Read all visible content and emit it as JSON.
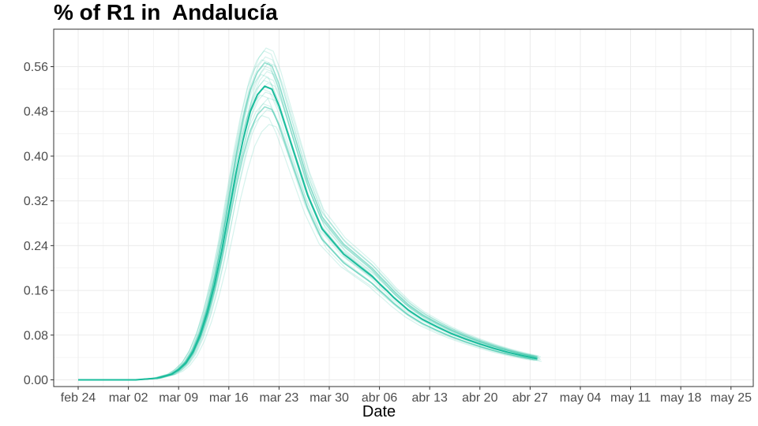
{
  "chart_data": {
    "type": "line",
    "title": "% of R1 in  Andalucía",
    "xlabel": "Date",
    "ylabel": "",
    "x_tick_labels": [
      "feb 24",
      "mar 02",
      "mar 09",
      "mar 16",
      "mar 23",
      "mar 30",
      "abr 06",
      "abr 13",
      "abr 20",
      "abr 27",
      "may 04",
      "may 11",
      "may 18",
      "may 25"
    ],
    "y_tick_labels": [
      "0.00",
      "0.08",
      "0.16",
      "0.24",
      "0.32",
      "0.40",
      "0.48",
      "0.56"
    ],
    "ylim": [
      -0.012,
      0.627
    ],
    "xlim_days": [
      -4,
      66
    ],
    "x_start_date": "feb 24",
    "grid": true,
    "legend": "none",
    "color": "#1abc9c",
    "main_series": {
      "name": "",
      "days": [
        0,
        8,
        11,
        13,
        14,
        15,
        16,
        17,
        18,
        19,
        20,
        21,
        22,
        23,
        24,
        25,
        26,
        27,
        28,
        29,
        30,
        31,
        32,
        33,
        34,
        35,
        36,
        37,
        38,
        39,
        40,
        41,
        42,
        43,
        44,
        46,
        48,
        50,
        52,
        54,
        56,
        58,
        60,
        62,
        64
      ],
      "values": [
        0.0,
        0.0,
        0.003,
        0.01,
        0.018,
        0.03,
        0.05,
        0.08,
        0.12,
        0.17,
        0.23,
        0.3,
        0.37,
        0.43,
        0.48,
        0.51,
        0.525,
        0.52,
        0.49,
        0.45,
        0.41,
        0.37,
        0.33,
        0.3,
        0.27,
        0.255,
        0.24,
        0.225,
        0.215,
        0.205,
        0.195,
        0.185,
        0.172,
        0.16,
        0.147,
        0.125,
        0.108,
        0.095,
        0.083,
        0.073,
        0.064,
        0.056,
        0.049,
        0.043,
        0.038
      ]
    },
    "ensemble_scale_factors": [
      0.87,
      0.9,
      0.92,
      0.94,
      0.96,
      0.97,
      0.98,
      0.99,
      1.01,
      1.02,
      1.03,
      1.04,
      1.05,
      1.06,
      1.07,
      1.08,
      1.09,
      1.1,
      1.12,
      1.13
    ],
    "ensemble_day_shifts": [
      0.6,
      -0.4,
      0.3,
      -0.2,
      0.5,
      -0.6,
      0.1,
      -0.3,
      0.4,
      -0.1,
      0.2,
      -0.5,
      0.3,
      0.0,
      -0.2,
      0.5,
      -0.4,
      0.1,
      -0.1,
      0.2
    ],
    "highlight_scale_factors": [
      0.93,
      1.08
    ]
  }
}
